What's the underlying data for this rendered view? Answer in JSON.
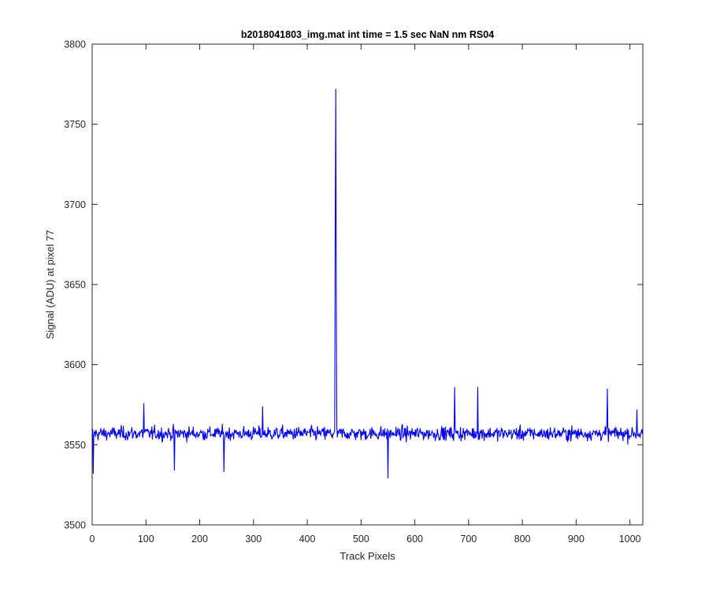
{
  "chart_data": {
    "type": "line",
    "title": "b2018041803_img.mat int time = 1.5 sec  NaN nm RS04",
    "xlabel": "Track Pixels",
    "ylabel": "Signal (ADU) at pixel 77",
    "xlim": [
      0,
      1024
    ],
    "ylim": [
      3500,
      3800
    ],
    "x_ticks": [
      0,
      100,
      200,
      300,
      400,
      500,
      600,
      700,
      800,
      900,
      1000
    ],
    "y_ticks": [
      3500,
      3550,
      3600,
      3650,
      3700,
      3750,
      3800
    ],
    "grid": false,
    "legend": "none",
    "series": [
      {
        "color": "#0000ff",
        "baseline": 3557,
        "n_points": 1024,
        "spikes": [
          {
            "x": 451,
            "y": 3689
          },
          {
            "x": 452,
            "y": 3772
          },
          {
            "x": 453,
            "y": 3641
          }
        ],
        "notable_points": [
          {
            "x": 1,
            "y": 3532
          },
          {
            "x": 95,
            "y": 3576
          },
          {
            "x": 152,
            "y": 3534
          },
          {
            "x": 244,
            "y": 3533
          },
          {
            "x": 316,
            "y": 3574
          },
          {
            "x": 549,
            "y": 3529
          },
          {
            "x": 673,
            "y": 3586
          },
          {
            "x": 716,
            "y": 3586
          },
          {
            "x": 957,
            "y": 3585
          },
          {
            "x": 1012,
            "y": 3572
          }
        ]
      }
    ]
  }
}
